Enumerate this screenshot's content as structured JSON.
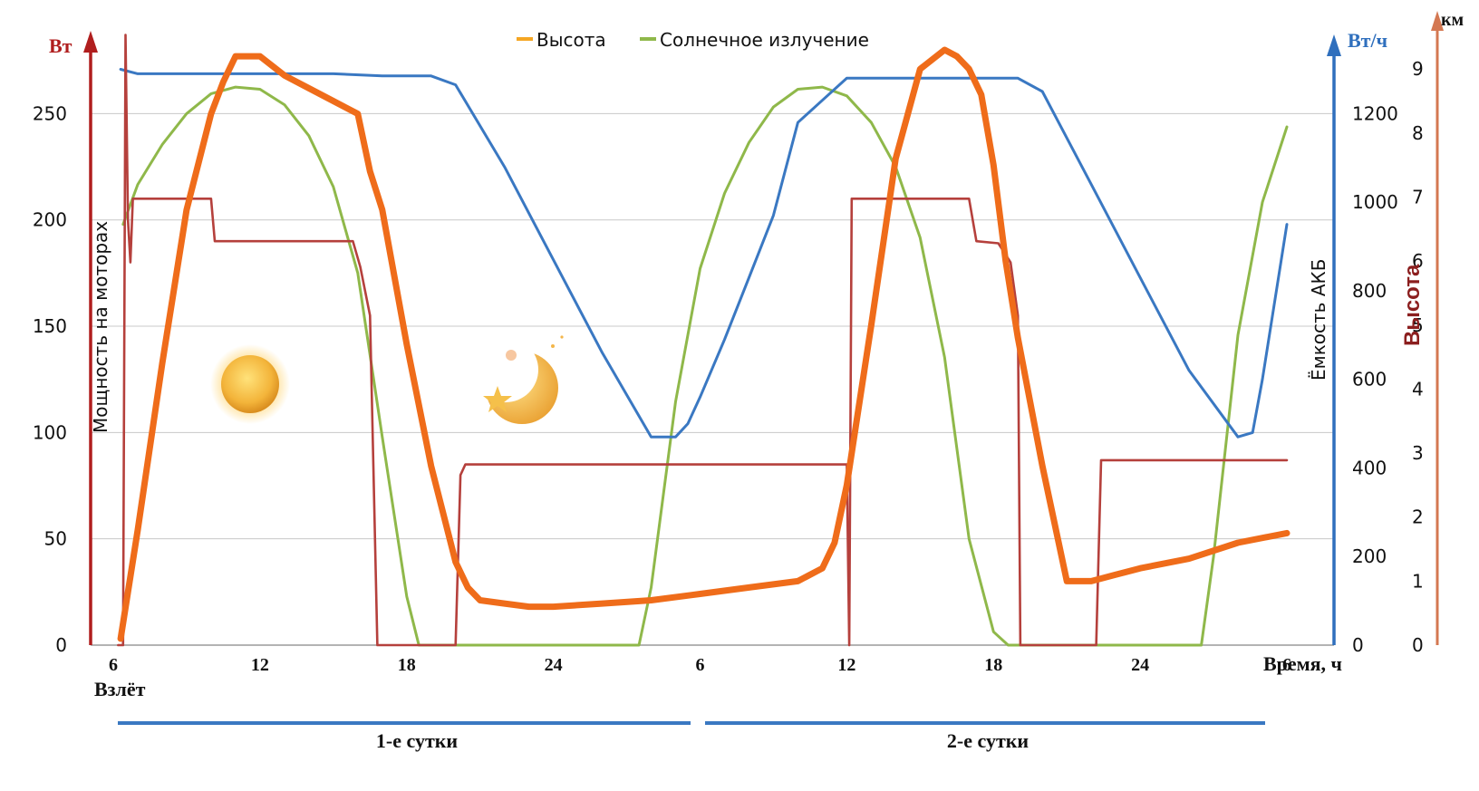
{
  "chart_data": {
    "type": "line",
    "legend": {
      "placement": "top-center",
      "items": [
        {
          "label": "Высота",
          "color": "#f5a623"
        },
        {
          "label": "Солнечное излучение",
          "color": "#8fb84a"
        }
      ]
    },
    "axes": {
      "left": {
        "unit": "Вт",
        "label": "Мощность на моторах",
        "ticks": [
          "0",
          "50",
          "100",
          "150",
          "200",
          "250"
        ],
        "range": [
          0,
          280
        ],
        "color": "#b02a2a"
      },
      "right1": {
        "unit": "Вт/ч",
        "label": "Ёмкость АКБ",
        "ticks": [
          "0",
          "200",
          "400",
          "600",
          "800",
          "1000",
          "1200"
        ],
        "range": [
          0,
          1344
        ],
        "color": "#3a78c2"
      },
      "right2": {
        "unit": "км",
        "label": "Высота",
        "ticks": [
          "0",
          "1",
          "2",
          "3",
          "4",
          "5",
          "6",
          "7",
          "8",
          "9"
        ],
        "range": [
          0,
          9.3
        ],
        "color": "#c8704a"
      },
      "x": {
        "label": "Время, ч",
        "ticks": [
          "6",
          "12",
          "18",
          "24",
          "6",
          "12",
          "18",
          "24",
          "6"
        ],
        "range": [
          6,
          54
        ]
      }
    },
    "x_note": "x is hours since the start of day 1 (6 = 6:00 of day 1, 30 = 6:00 of day 2, 54 = 6:00 of day 3)",
    "grid": true,
    "annotations": {
      "takeoff": "Взлёт",
      "days": [
        "1-е сутки",
        "2-е сутки"
      ]
    },
    "series": [
      {
        "name": "Солнечное излучение",
        "axis": "right1",
        "color": "#8fb84a",
        "x": [
          6.4,
          7,
          8,
          9,
          10,
          11,
          12,
          13,
          14,
          15,
          16,
          17,
          18,
          18.5,
          19,
          20,
          21,
          22,
          23,
          24,
          25,
          26,
          27,
          27.5,
          28,
          29,
          30,
          31,
          32,
          33,
          34,
          35,
          36,
          37,
          38,
          39,
          40,
          41,
          42,
          42.6,
          43,
          44,
          45,
          46,
          47,
          48,
          49,
          50,
          50.5,
          51,
          52,
          53,
          54
        ],
        "y": [
          950,
          1040,
          1130,
          1200,
          1245,
          1260,
          1255,
          1220,
          1150,
          1035,
          840,
          470,
          110,
          0,
          0,
          0,
          0,
          0,
          0,
          0,
          0,
          0,
          0,
          0,
          130,
          550,
          850,
          1020,
          1135,
          1215,
          1255,
          1260,
          1240,
          1180,
          1080,
          920,
          650,
          240,
          30,
          0,
          0,
          0,
          0,
          0,
          0,
          0,
          0,
          0,
          0,
          200,
          700,
          1000,
          1170
        ]
      },
      {
        "name": "",
        "axis": "right1",
        "color": "#3a78c2",
        "x": [
          6.3,
          7,
          10,
          12,
          15,
          17,
          19,
          20,
          22,
          24,
          26,
          28,
          29,
          29.5,
          30,
          31,
          32,
          33,
          34,
          35,
          36,
          37,
          38,
          40,
          42,
          43,
          44,
          46,
          48,
          50,
          52,
          52.6,
          53,
          54
        ],
        "y": [
          1300,
          1290,
          1290,
          1290,
          1290,
          1285,
          1285,
          1265,
          1080,
          870,
          660,
          470,
          470,
          500,
          560,
          690,
          830,
          970,
          1180,
          1230,
          1280,
          1280,
          1280,
          1280,
          1280,
          1280,
          1250,
          1040,
          830,
          620,
          470,
          480,
          600,
          950
        ]
      },
      {
        "name": "",
        "axis": "left",
        "color": "#b5403c",
        "x": [
          6.2,
          6.4,
          6.5,
          6.6,
          6.7,
          6.8,
          10,
          10.15,
          15.8,
          16.1,
          16.5,
          16.8,
          17.1,
          20,
          20.2,
          20.4,
          36,
          36.1,
          36.2,
          41,
          41.3,
          42.2,
          42.7,
          43,
          43.1,
          43.2,
          46,
          46.2,
          46.4,
          54
        ],
        "y": [
          0,
          0,
          287,
          200,
          180,
          210,
          210,
          190,
          190,
          178,
          155,
          0,
          0,
          0,
          80,
          85,
          85,
          0,
          210,
          210,
          190,
          189,
          180,
          155,
          0,
          0,
          0,
          0,
          87,
          87
        ]
      },
      {
        "name": "Высота",
        "axis": "right2",
        "color": "#ef6c1a",
        "x": [
          6.3,
          7,
          8,
          9,
          10,
          10.5,
          11,
          12,
          13,
          14,
          15,
          16,
          16.5,
          17,
          18,
          19,
          20,
          20.5,
          21,
          22,
          23,
          24,
          26,
          28,
          30,
          32,
          34,
          35,
          35.5,
          36,
          37,
          38,
          39,
          40,
          40.5,
          41,
          41.5,
          42,
          42.5,
          43,
          44,
          45,
          46,
          47,
          48,
          50,
          52,
          54
        ],
        "y": [
          0.1,
          1.8,
          4.4,
          6.8,
          8.3,
          8.8,
          9.2,
          9.2,
          8.9,
          8.7,
          8.5,
          8.3,
          7.4,
          6.8,
          4.7,
          2.8,
          1.3,
          0.9,
          0.7,
          0.65,
          0.6,
          0.6,
          0.65,
          0.7,
          0.8,
          0.9,
          1.0,
          1.2,
          1.6,
          2.5,
          5.0,
          7.6,
          9.0,
          9.3,
          9.2,
          9.0,
          8.6,
          7.5,
          6.0,
          4.8,
          2.8,
          1.0,
          1.0,
          1.1,
          1.2,
          1.35,
          1.6,
          1.75
        ]
      }
    ]
  }
}
